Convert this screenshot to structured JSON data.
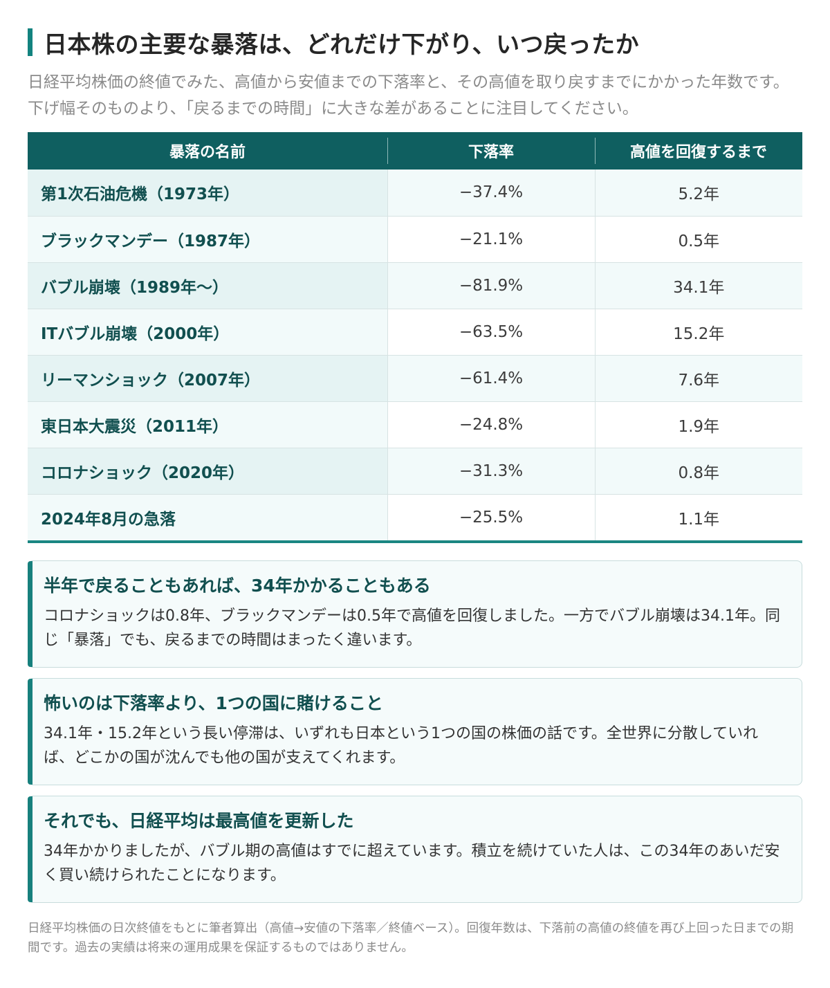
{
  "title": "日本株の主要な暴落は、どれだけ下がり、いつ戻ったか",
  "subtitle": "日経平均株価の終値でみた、高値から安値までの下落率と、その高値を取り戻すまでにかかった年数です。下げ幅そのものより、「戻るまでの時間」に大きな差があることに注目してください。",
  "table": {
    "headers": [
      "暴落の名前",
      "下落率",
      "高値を回復するまで"
    ],
    "rows": [
      {
        "name": "第1次石油危機（1973年）",
        "drop": "−37.4%",
        "recovery": "5.2年"
      },
      {
        "name": "ブラックマンデー（1987年）",
        "drop": "−21.1%",
        "recovery": "0.5年"
      },
      {
        "name": "バブル崩壊（1989年〜）",
        "drop": "−81.9%",
        "recovery": "34.1年"
      },
      {
        "name": "ITバブル崩壊（2000年）",
        "drop": "−63.5%",
        "recovery": "15.2年"
      },
      {
        "name": "リーマンショック（2007年）",
        "drop": "−61.4%",
        "recovery": "7.6年"
      },
      {
        "name": "東日本大震災（2011年）",
        "drop": "−24.8%",
        "recovery": "1.9年"
      },
      {
        "name": "コロナショック（2020年）",
        "drop": "−31.3%",
        "recovery": "0.8年"
      },
      {
        "name": "2024年8月の急落",
        "drop": "−25.5%",
        "recovery": "1.1年"
      }
    ]
  },
  "cards": [
    {
      "title": "半年で戻ることもあれば、34年かかることもある",
      "body": "コロナショックは0.8年、ブラックマンデーは0.5年で高値を回復しました。一方でバブル崩壊は34.1年。同じ「暴落」でも、戻るまでの時間はまったく違います。"
    },
    {
      "title": "怖いのは下落率より、1つの国に賭けること",
      "body": "34.1年・15.2年という長い停滞は、いずれも日本という1つの国の株価の話です。全世界に分散していれば、どこかの国が沈んでも他の国が支えてくれます。"
    },
    {
      "title": "それでも、日経平均は最高値を更新した",
      "body": "34年かかりましたが、バブル期の高値はすでに超えています。積立を続けていた人は、この34年のあいだ安く買い続けられたことになります。"
    }
  ],
  "footnote": "日経平均株価の日次終値をもとに筆者算出（高値→安値の下落率／終値ベース）。回復年数は、下落前の高値の終値を再び上回った日までの期間です。過去の実績は将来の運用成果を保証するものではありません。",
  "colors": {
    "accent": "#13837f",
    "header_bg": "#0f5f60",
    "name_text": "#114f4f",
    "row_tint": "#e5f3f3",
    "card_bg": "#f5fbfb"
  }
}
